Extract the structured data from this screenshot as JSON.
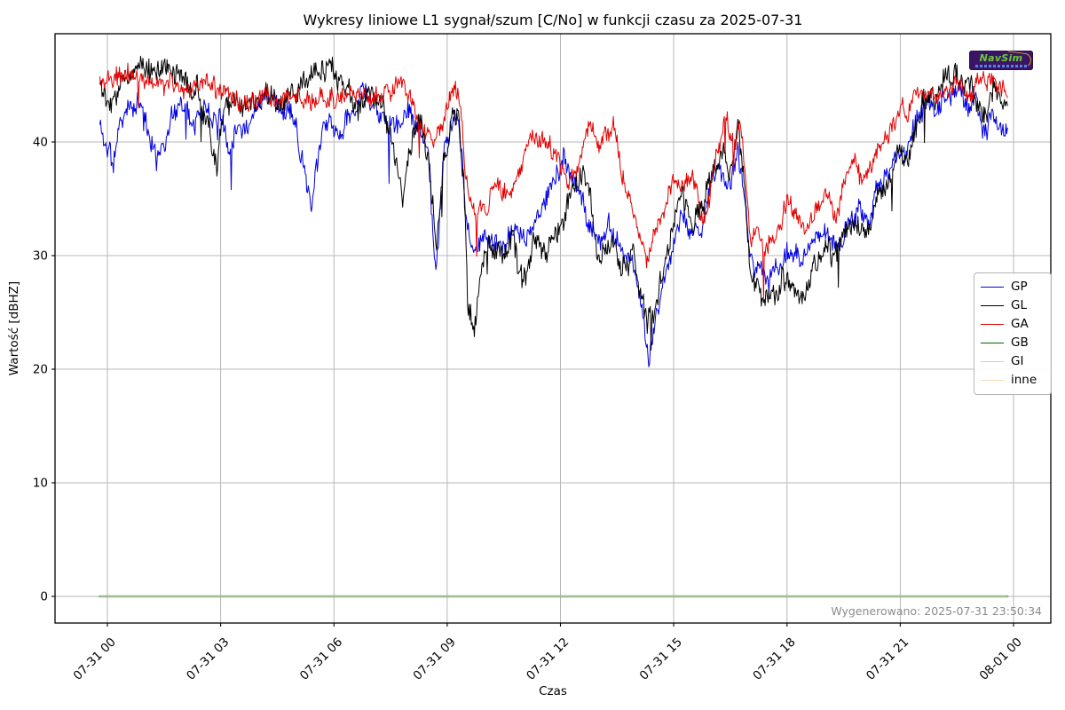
{
  "title": "Wykresy liniowe L1 sygnał/szum [C/No] w funkcji czasu za 2025-07-31",
  "generated_label": "Wygenerowano: 2025-07-31 23:50:34",
  "logo": {
    "text": "NavSim"
  },
  "colors": {
    "grid": "#b7b7b7",
    "frame": "#000000",
    "generated_text": "#8c8c8c",
    "legend_border": "#b4b4b4"
  },
  "chart_data": {
    "type": "line",
    "title": "Wykresy liniowe L1 sygnał/szum [C/No] w funkcji czasu za 2025-07-31",
    "xlabel": "Czas",
    "ylabel": "Wartość [dBHZ]",
    "grid": true,
    "legend_position": "right",
    "ylim": [
      -2.3,
      49.4
    ],
    "y_ticks": [
      0,
      10,
      20,
      30,
      40
    ],
    "x_ticks_hours": [
      0,
      3,
      6,
      9,
      12,
      15,
      18,
      21,
      24
    ],
    "x_tick_labels": [
      "07-31 00",
      "07-31 03",
      "07-31 06",
      "07-31 09",
      "07-31 12",
      "07-31 15",
      "07-31 18",
      "07-31 21",
      "08-01 00"
    ],
    "series": [
      {
        "name": "GP",
        "color": "#0000e0",
        "noise": 0.8,
        "seed": 11,
        "points": [
          [
            -0.2,
            41.5
          ],
          [
            0.05,
            39.5
          ],
          [
            0.15,
            37.6
          ],
          [
            0.3,
            41.0
          ],
          [
            0.6,
            42.5
          ],
          [
            0.9,
            43.6
          ],
          [
            1.1,
            41.0
          ],
          [
            1.3,
            37.9
          ],
          [
            1.5,
            40.5
          ],
          [
            1.8,
            43.0
          ],
          [
            2.0,
            43.5
          ],
          [
            2.3,
            42.8
          ],
          [
            2.6,
            43.2
          ],
          [
            3.0,
            42.5
          ],
          [
            3.2,
            39.6
          ],
          [
            3.4,
            41.5
          ],
          [
            3.7,
            42.0
          ],
          [
            4.0,
            43.5
          ],
          [
            4.3,
            43.8
          ],
          [
            4.6,
            42.5
          ],
          [
            5.0,
            42.0
          ],
          [
            5.2,
            38.5
          ],
          [
            5.4,
            34.7
          ],
          [
            5.6,
            39.0
          ],
          [
            5.9,
            41.5
          ],
          [
            6.2,
            40.0
          ],
          [
            6.5,
            43.4
          ],
          [
            6.8,
            43.8
          ],
          [
            7.0,
            43.4
          ],
          [
            7.3,
            42.0
          ],
          [
            7.6,
            41.0
          ],
          [
            7.9,
            42.5
          ],
          [
            8.2,
            41.0
          ],
          [
            8.5,
            39.5
          ],
          [
            8.7,
            27.8
          ],
          [
            8.9,
            39.0
          ],
          [
            9.1,
            41.5
          ],
          [
            9.3,
            42.0
          ],
          [
            9.5,
            33.5
          ],
          [
            9.7,
            30.5
          ],
          [
            9.9,
            31.5
          ],
          [
            10.2,
            32.0
          ],
          [
            10.5,
            31.0
          ],
          [
            10.8,
            32.5
          ],
          [
            11.0,
            31.5
          ],
          [
            11.3,
            33.0
          ],
          [
            11.6,
            34.5
          ],
          [
            11.9,
            36.5
          ],
          [
            12.1,
            38.0
          ],
          [
            12.4,
            36.0
          ],
          [
            12.7,
            33.5
          ],
          [
            13.0,
            31.5
          ],
          [
            13.3,
            32.5
          ],
          [
            13.6,
            30.0
          ],
          [
            13.9,
            29.0
          ],
          [
            14.1,
            27.0
          ],
          [
            14.35,
            20.5
          ],
          [
            14.5,
            24.0
          ],
          [
            14.7,
            28.0
          ],
          [
            15.0,
            31.5
          ],
          [
            15.2,
            33.5
          ],
          [
            15.5,
            31.0
          ],
          [
            15.8,
            33.0
          ],
          [
            16.0,
            35.5
          ],
          [
            16.2,
            37.5
          ],
          [
            16.5,
            36.5
          ],
          [
            16.7,
            39.5
          ],
          [
            16.9,
            34.0
          ],
          [
            17.05,
            28.5
          ],
          [
            17.3,
            29.5
          ],
          [
            17.5,
            27.5
          ],
          [
            17.8,
            29.0
          ],
          [
            18.0,
            30.5
          ],
          [
            18.3,
            29.5
          ],
          [
            18.6,
            31.0
          ],
          [
            19.0,
            32.0
          ],
          [
            19.3,
            31.0
          ],
          [
            19.6,
            32.5
          ],
          [
            19.9,
            34.0
          ],
          [
            20.2,
            33.0
          ],
          [
            20.5,
            36.0
          ],
          [
            20.8,
            37.5
          ],
          [
            21.0,
            39.0
          ],
          [
            21.3,
            40.5
          ],
          [
            21.5,
            42.0
          ],
          [
            21.8,
            43.0
          ],
          [
            22.0,
            43.5
          ],
          [
            22.2,
            44.5
          ],
          [
            22.4,
            43.5
          ],
          [
            22.6,
            44.0
          ],
          [
            22.8,
            42.5
          ],
          [
            23.0,
            43.2
          ],
          [
            23.2,
            40.0
          ],
          [
            23.4,
            42.5
          ],
          [
            23.6,
            42.0
          ],
          [
            23.85,
            42.3
          ]
        ]
      },
      {
        "name": "GL",
        "color": "#000000",
        "noise": 0.9,
        "seed": 22,
        "points": [
          [
            -0.2,
            45.5
          ],
          [
            0.0,
            44.8
          ],
          [
            0.3,
            45.5
          ],
          [
            0.7,
            46.0
          ],
          [
            1.0,
            47.0
          ],
          [
            1.2,
            45.5
          ],
          [
            1.5,
            46.3
          ],
          [
            1.8,
            46.0
          ],
          [
            2.0,
            45.0
          ],
          [
            2.3,
            44.0
          ],
          [
            2.6,
            42.5
          ],
          [
            2.9,
            38.0
          ],
          [
            3.1,
            42.5
          ],
          [
            3.3,
            44.0
          ],
          [
            3.6,
            43.5
          ],
          [
            4.0,
            44.0
          ],
          [
            4.3,
            43.5
          ],
          [
            4.6,
            44.5
          ],
          [
            5.0,
            44.3
          ],
          [
            5.3,
            44.0
          ],
          [
            5.6,
            46.5
          ],
          [
            5.9,
            47.0
          ],
          [
            6.1,
            45.0
          ],
          [
            6.4,
            44.5
          ],
          [
            6.7,
            43.8
          ],
          [
            7.0,
            44.5
          ],
          [
            7.3,
            43.0
          ],
          [
            7.6,
            38.0
          ],
          [
            7.8,
            34.5
          ],
          [
            8.0,
            40.5
          ],
          [
            8.3,
            41.5
          ],
          [
            8.5,
            38.5
          ],
          [
            8.7,
            30.8
          ],
          [
            8.9,
            38.0
          ],
          [
            9.1,
            41.5
          ],
          [
            9.3,
            42.5
          ],
          [
            9.45,
            36.0
          ],
          [
            9.55,
            26.0
          ],
          [
            9.7,
            23.0
          ],
          [
            9.9,
            28.5
          ],
          [
            10.1,
            30.5
          ],
          [
            10.4,
            29.5
          ],
          [
            10.7,
            31.5
          ],
          [
            11.0,
            28.0
          ],
          [
            11.3,
            31.0
          ],
          [
            11.6,
            30.0
          ],
          [
            12.0,
            32.5
          ],
          [
            12.3,
            36.0
          ],
          [
            12.6,
            37.8
          ],
          [
            12.8,
            34.0
          ],
          [
            13.0,
            30.0
          ],
          [
            13.3,
            31.5
          ],
          [
            13.6,
            28.5
          ],
          [
            13.9,
            30.5
          ],
          [
            14.1,
            27.5
          ],
          [
            14.3,
            23.5
          ],
          [
            14.5,
            25.5
          ],
          [
            14.8,
            31.0
          ],
          [
            15.0,
            33.0
          ],
          [
            15.2,
            35.0
          ],
          [
            15.5,
            32.0
          ],
          [
            15.8,
            34.5
          ],
          [
            16.0,
            37.0
          ],
          [
            16.3,
            39.5
          ],
          [
            16.5,
            38.0
          ],
          [
            16.7,
            41.0
          ],
          [
            16.9,
            36.0
          ],
          [
            17.05,
            27.5
          ],
          [
            17.2,
            28.0
          ],
          [
            17.4,
            25.5
          ],
          [
            17.6,
            27.0
          ],
          [
            17.8,
            26.0
          ],
          [
            18.0,
            28.0
          ],
          [
            18.3,
            27.5
          ],
          [
            18.6,
            28.5
          ],
          [
            19.0,
            30.5
          ],
          [
            19.3,
            29.5
          ],
          [
            19.6,
            32.0
          ],
          [
            19.9,
            33.5
          ],
          [
            20.1,
            31.5
          ],
          [
            20.4,
            35.5
          ],
          [
            20.7,
            37.0
          ],
          [
            21.0,
            39.5
          ],
          [
            21.2,
            38.0
          ],
          [
            21.4,
            41.0
          ],
          [
            21.6,
            43.5
          ],
          [
            21.8,
            44.5
          ],
          [
            22.0,
            44.0
          ],
          [
            22.2,
            45.5
          ],
          [
            22.5,
            46.3
          ],
          [
            22.7,
            44.5
          ],
          [
            22.9,
            45.0
          ],
          [
            23.1,
            44.3
          ],
          [
            23.3,
            42.0
          ],
          [
            23.45,
            45.0
          ],
          [
            23.6,
            44.5
          ],
          [
            23.85,
            42.5
          ]
        ]
      },
      {
        "name": "GA",
        "color": "#e30000",
        "noise": 0.7,
        "seed": 33,
        "points": [
          [
            -0.2,
            45.4
          ],
          [
            0.0,
            45.5
          ],
          [
            0.5,
            45.0
          ],
          [
            1.0,
            45.3
          ],
          [
            1.5,
            44.6
          ],
          [
            2.0,
            44.8
          ],
          [
            2.5,
            44.3
          ],
          [
            3.0,
            44.5
          ],
          [
            3.5,
            43.6
          ],
          [
            4.0,
            44.2
          ],
          [
            4.5,
            43.8
          ],
          [
            5.0,
            43.4
          ],
          [
            5.5,
            43.7
          ],
          [
            6.0,
            43.6
          ],
          [
            6.5,
            43.8
          ],
          [
            7.0,
            43.3
          ],
          [
            7.5,
            44.2
          ],
          [
            7.8,
            45.2
          ],
          [
            8.0,
            43.8
          ],
          [
            8.3,
            41.5
          ],
          [
            8.6,
            40.0
          ],
          [
            8.9,
            41.8
          ],
          [
            9.2,
            44.4
          ],
          [
            9.35,
            43.8
          ],
          [
            9.5,
            36.5
          ],
          [
            9.8,
            34.0
          ],
          [
            10.1,
            35.0
          ],
          [
            10.4,
            36.0
          ],
          [
            10.7,
            35.0
          ],
          [
            11.0,
            38.0
          ],
          [
            11.3,
            40.5
          ],
          [
            11.5,
            41.0
          ],
          [
            11.8,
            39.5
          ],
          [
            12.0,
            38.0
          ],
          [
            12.2,
            35.5
          ],
          [
            12.5,
            38.5
          ],
          [
            12.75,
            41.5
          ],
          [
            13.0,
            39.0
          ],
          [
            13.2,
            40.5
          ],
          [
            13.4,
            41.8
          ],
          [
            13.6,
            37.5
          ],
          [
            13.8,
            35.0
          ],
          [
            14.0,
            33.0
          ],
          [
            14.25,
            29.7
          ],
          [
            14.5,
            31.5
          ],
          [
            14.75,
            34.5
          ],
          [
            15.0,
            37.0
          ],
          [
            15.25,
            35.0
          ],
          [
            15.5,
            36.5
          ],
          [
            15.75,
            33.0
          ],
          [
            16.0,
            36.0
          ],
          [
            16.2,
            39.0
          ],
          [
            16.4,
            42.8
          ],
          [
            16.6,
            40.0
          ],
          [
            16.75,
            42.5
          ],
          [
            16.9,
            37.0
          ],
          [
            17.05,
            31.5
          ],
          [
            17.2,
            32.5
          ],
          [
            17.5,
            30.5
          ],
          [
            17.8,
            32.0
          ],
          [
            18.0,
            34.5
          ],
          [
            18.2,
            33.0
          ],
          [
            18.5,
            32.5
          ],
          [
            18.8,
            34.0
          ],
          [
            19.0,
            35.5
          ],
          [
            19.3,
            33.5
          ],
          [
            19.5,
            36.5
          ],
          [
            19.8,
            39.0
          ],
          [
            20.0,
            36.0
          ],
          [
            20.3,
            37.5
          ],
          [
            20.5,
            40.0
          ],
          [
            20.8,
            41.5
          ],
          [
            21.0,
            42.5
          ],
          [
            21.3,
            43.0
          ],
          [
            21.5,
            43.5
          ],
          [
            21.8,
            44.0
          ],
          [
            22.0,
            44.5
          ],
          [
            22.3,
            45.0
          ],
          [
            22.5,
            45.3
          ],
          [
            22.8,
            44.8
          ],
          [
            23.0,
            45.5
          ],
          [
            23.2,
            45.0
          ],
          [
            23.5,
            45.3
          ],
          [
            23.7,
            44.8
          ],
          [
            23.85,
            43.0
          ]
        ]
      },
      {
        "name": "GB",
        "color": "#006400",
        "noise": 0,
        "seed": 4,
        "points": [
          [
            -0.2,
            0
          ],
          [
            23.85,
            0
          ]
        ]
      },
      {
        "name": "GI",
        "color": "#add8e6",
        "noise": 0,
        "seed": 5,
        "points": [
          [
            -0.2,
            0
          ],
          [
            23.85,
            0
          ]
        ]
      },
      {
        "name": "inne",
        "color": "#f0dbb0",
        "noise": 0,
        "seed": 6,
        "points": [
          [
            -0.2,
            0
          ],
          [
            23.85,
            0
          ]
        ]
      }
    ]
  }
}
